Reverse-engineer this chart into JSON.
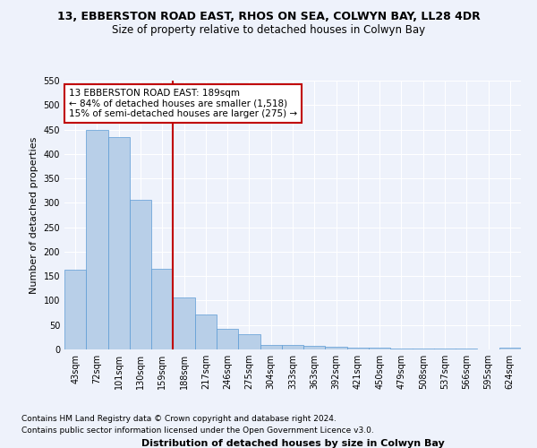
{
  "title1": "13, EBBERSTON ROAD EAST, RHOS ON SEA, COLWYN BAY, LL28 4DR",
  "title2": "Size of property relative to detached houses in Colwyn Bay",
  "xlabel": "Distribution of detached houses by size in Colwyn Bay",
  "ylabel": "Number of detached properties",
  "categories": [
    "43sqm",
    "72sqm",
    "101sqm",
    "130sqm",
    "159sqm",
    "188sqm",
    "217sqm",
    "246sqm",
    "275sqm",
    "304sqm",
    "333sqm",
    "363sqm",
    "392sqm",
    "421sqm",
    "450sqm",
    "479sqm",
    "508sqm",
    "537sqm",
    "566sqm",
    "595sqm",
    "624sqm"
  ],
  "values": [
    163,
    449,
    434,
    306,
    165,
    106,
    72,
    43,
    32,
    10,
    10,
    8,
    5,
    4,
    3,
    2,
    1,
    1,
    1,
    0,
    4
  ],
  "bar_color": "#b8cfe8",
  "bar_edge_color": "#5b9bd5",
  "vline_color": "#c00000",
  "annotation_text": "13 EBBERSTON ROAD EAST: 189sqm\n← 84% of detached houses are smaller (1,518)\n15% of semi-detached houses are larger (275) →",
  "annotation_box_color": "white",
  "annotation_box_edge_color": "#c00000",
  "ylim": [
    0,
    550
  ],
  "yticks": [
    0,
    50,
    100,
    150,
    200,
    250,
    300,
    350,
    400,
    450,
    500,
    550
  ],
  "footnote1": "Contains HM Land Registry data © Crown copyright and database right 2024.",
  "footnote2": "Contains public sector information licensed under the Open Government Licence v3.0.",
  "bg_color": "#eef2fb",
  "grid_color": "#ffffff",
  "title1_fontsize": 9,
  "title2_fontsize": 8.5,
  "tick_fontsize": 7,
  "label_fontsize": 8,
  "annot_fontsize": 7.5
}
